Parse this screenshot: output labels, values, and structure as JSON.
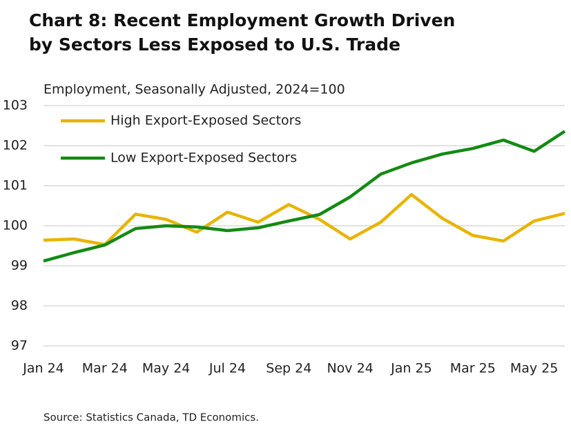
{
  "chart_data": {
    "type": "line",
    "title": "Chart 8: Recent Employment Growth Driven by Sectors Less Exposed to U.S. Trade",
    "subtitle": "Employment, Seasonally Adjusted, 2024=100",
    "source": "Source: Statistics Canada, TD Economics.",
    "categories": [
      "Jan 24",
      null,
      "Mar 24",
      null,
      "May 24",
      null,
      "Jul 24",
      null,
      "Sep 24",
      null,
      "Nov 24",
      null,
      "Jan 25",
      null,
      "Mar 25",
      null,
      "May 25",
      null
    ],
    "series": [
      {
        "name": "High Export-Exposed Sectors",
        "color": "#e8b400",
        "values": [
          99.64,
          99.67,
          99.53,
          100.29,
          100.16,
          99.84,
          100.34,
          100.09,
          100.53,
          100.16,
          99.67,
          100.09,
          100.78,
          100.19,
          99.76,
          99.62,
          100.12,
          100.31
        ]
      },
      {
        "name": "Low Export-Exposed Sectors",
        "color": "#138a13",
        "values": [
          99.12,
          99.33,
          99.52,
          99.93,
          100.0,
          99.97,
          99.88,
          99.95,
          100.12,
          100.28,
          100.72,
          101.29,
          101.57,
          101.79,
          101.93,
          102.14,
          101.86,
          102.36
        ]
      }
    ],
    "ylim": [
      97,
      103
    ],
    "yticks": [
      97,
      98,
      99,
      100,
      101,
      102,
      103
    ],
    "grid": true,
    "legend": "top-left"
  }
}
